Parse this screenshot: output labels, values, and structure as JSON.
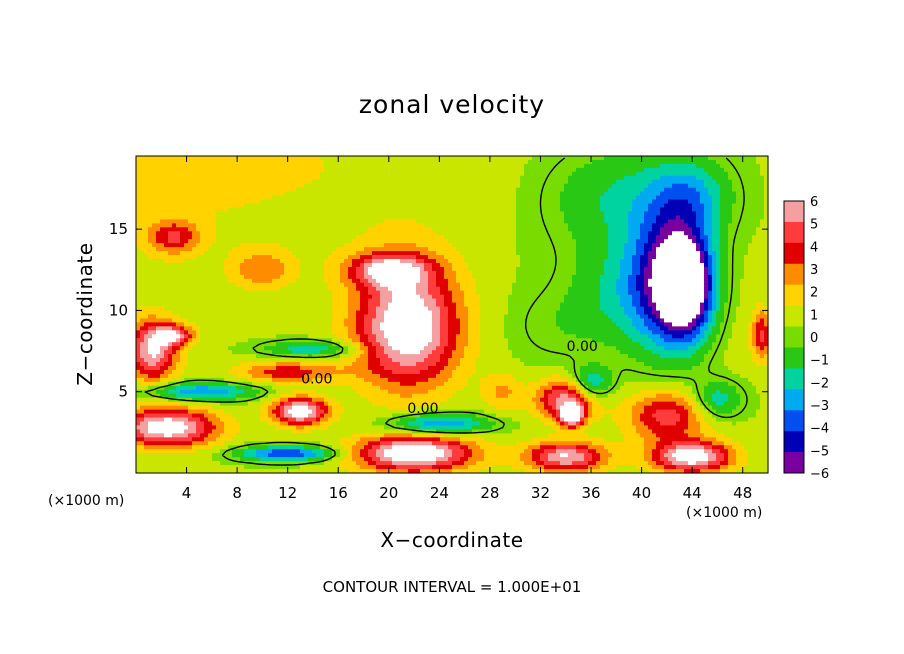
{
  "chart_data": {
    "type": "heatmap",
    "title": "zonal velocity",
    "xlabel": "X−coordinate",
    "ylabel": "Z−coordinate",
    "x_unit": "(×1000 m)",
    "y_unit": "(×1000 m)",
    "xlim": [
      0,
      50
    ],
    "ylim": [
      0,
      19.5
    ],
    "x_ticks": [
      "4",
      "8",
      "12",
      "16",
      "20",
      "24",
      "28",
      "32",
      "36",
      "40",
      "44",
      "48"
    ],
    "x_tick_values": [
      4,
      8,
      12,
      16,
      20,
      24,
      28,
      32,
      36,
      40,
      44,
      48
    ],
    "y_ticks": [
      "5",
      "10",
      "15"
    ],
    "y_tick_values": [
      5,
      10,
      15
    ],
    "colorbar": {
      "labels": [
        "6",
        "5",
        "4",
        "3",
        "2",
        "1",
        "0",
        "−1",
        "−2",
        "−3",
        "−4",
        "−5",
        "−6"
      ],
      "values": [
        6,
        5,
        4,
        3,
        2,
        1,
        0,
        -1,
        -2,
        -3,
        -4,
        -5,
        -6
      ],
      "colors": [
        "#f4a0a0",
        "#ff3c3c",
        "#e00000",
        "#ff8c00",
        "#ffd200",
        "#c8e600",
        "#78dc00",
        "#28c814",
        "#00d2a0",
        "#00aaf0",
        "#0050f0",
        "#0000b4",
        "#7800a0"
      ]
    },
    "contour_labels": [
      {
        "text": "0.00",
        "x": 14.3,
        "y": 5.8
      },
      {
        "text": "0.00",
        "x": 22.7,
        "y": 4.0
      },
      {
        "text": "0.00",
        "x": 35.3,
        "y": 7.8
      }
    ],
    "grid": false,
    "footer": "CONTOUR INTERVAL = 1.000E+01",
    "field_blobs": [
      {
        "x": 0,
        "y": 19.5,
        "rx": 30,
        "ry": 9,
        "v": 1.2
      },
      {
        "x": 24,
        "y": 17,
        "rx": 12,
        "ry": 5,
        "v": 0.3
      },
      {
        "x": 32,
        "y": 16,
        "rx": 8,
        "ry": 6,
        "v": -0.3
      },
      {
        "x": 38,
        "y": 17,
        "rx": 7,
        "ry": 4,
        "v": -2.0
      },
      {
        "x": 44,
        "y": 17,
        "rx": 4,
        "ry": 3,
        "v": -2.8
      },
      {
        "x": 38,
        "y": 11,
        "rx": 5,
        "ry": 4,
        "v": -1.8
      },
      {
        "x": 33,
        "y": 9,
        "rx": 5,
        "ry": 3,
        "v": -0.8
      },
      {
        "x": 47,
        "y": 9,
        "rx": 3,
        "ry": 6,
        "v": 0.3
      },
      {
        "x": 3,
        "y": 14.5,
        "rx": 2.5,
        "ry": 1.3,
        "v": 3.5
      },
      {
        "x": 10,
        "y": 12.5,
        "rx": 3,
        "ry": 1.5,
        "v": 2.5
      },
      {
        "x": 21.5,
        "y": 9,
        "rx": 5.2,
        "ry": 4.6,
        "v": 7.5
      },
      {
        "x": 20,
        "y": 12.5,
        "rx": 4,
        "ry": 1.3,
        "v": 5.0
      },
      {
        "x": 1.3,
        "y": 7.5,
        "rx": 2.5,
        "ry": 2.4,
        "v": 6.0
      },
      {
        "x": 3,
        "y": 8.5,
        "rx": 2,
        "ry": 0.8,
        "v": 4.5
      },
      {
        "x": 2.5,
        "y": 2.8,
        "rx": 5,
        "ry": 1.5,
        "v": 7.0
      },
      {
        "x": 13,
        "y": 3.8,
        "rx": 2.8,
        "ry": 1.1,
        "v": 7.0
      },
      {
        "x": 12,
        "y": 6.2,
        "rx": 5,
        "ry": 0.9,
        "v": 3.5
      },
      {
        "x": 5,
        "y": 5.0,
        "rx": 6,
        "ry": 0.7,
        "v": -4.0
      },
      {
        "x": 14,
        "y": 7.6,
        "rx": 5,
        "ry": 0.7,
        "v": -3.0
      },
      {
        "x": 24,
        "y": 3.0,
        "rx": 5,
        "ry": 0.8,
        "v": -4.5
      },
      {
        "x": 12,
        "y": 1.2,
        "rx": 5,
        "ry": 0.6,
        "v": -5.0
      },
      {
        "x": 22,
        "y": 1.2,
        "rx": 6,
        "ry": 1.4,
        "v": 7.5
      },
      {
        "x": 34,
        "y": 4.5,
        "rx": 3,
        "ry": 1.6,
        "v": 5.5
      },
      {
        "x": 34.5,
        "y": 3.5,
        "rx": 1.1,
        "ry": 0.8,
        "v": 7.5
      },
      {
        "x": 36,
        "y": 5.5,
        "rx": 2,
        "ry": 1.3,
        "v": -3.5
      },
      {
        "x": 42,
        "y": 3.5,
        "rx": 4,
        "ry": 2.0,
        "v": 4.5
      },
      {
        "x": 44,
        "y": 1.0,
        "rx": 4,
        "ry": 1.2,
        "v": 7.0
      },
      {
        "x": 46,
        "y": 4.5,
        "rx": 2.5,
        "ry": 1.5,
        "v": -3.0
      },
      {
        "x": 34,
        "y": 1.0,
        "rx": 4,
        "ry": 1.2,
        "v": 6.0
      },
      {
        "x": 29,
        "y": 5.0,
        "rx": 2,
        "ry": 1.5,
        "v": 2.0
      },
      {
        "x": 42,
        "y": 12,
        "rx": 4,
        "ry": 5.5,
        "v": -5.5
      },
      {
        "x": 43.5,
        "y": 11.5,
        "rx": 2.7,
        "ry": 3.8,
        "v": -8.0
      },
      {
        "x": 49.5,
        "y": 8.5,
        "rx": 1,
        "ry": 2,
        "v": 4.0
      }
    ]
  }
}
